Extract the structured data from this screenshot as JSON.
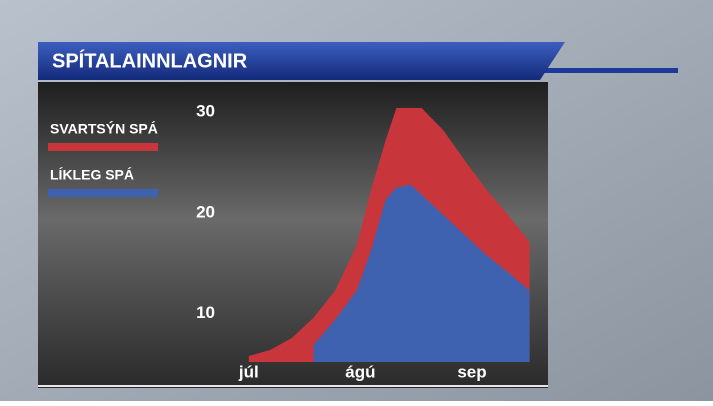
{
  "chart_data": {
    "type": "area",
    "title": "SPÍTALAINNLAGNIR",
    "x": [
      0,
      6,
      12,
      18,
      24,
      30,
      34,
      38,
      41,
      45,
      48,
      54,
      60,
      66,
      72,
      78
    ],
    "series": [
      {
        "name": "SVARTSÝN SPÁ",
        "color": "#c8363c",
        "values": [
          6.6,
          7.2,
          8.4,
          10.4,
          13.1,
          17.6,
          23.1,
          28.0,
          31.2,
          31.2,
          31.2,
          29.0,
          26.0,
          23.1,
          20.6,
          17.9
        ]
      },
      {
        "name": "LÍKLEG SPÁ",
        "color": "#3f62b0",
        "values": [
          null,
          null,
          null,
          7.7,
          10.2,
          13.1,
          17.1,
          22.1,
          23.3,
          23.6,
          22.6,
          20.6,
          18.6,
          16.6,
          14.9,
          13.1
        ]
      }
    ],
    "xlim": [
      -58,
      82
    ],
    "xticks": [
      {
        "value": 0,
        "label": "júl"
      },
      {
        "value": 31,
        "label": "ágú"
      },
      {
        "value": 62,
        "label": "sep"
      }
    ],
    "ylim": [
      6,
      32
    ],
    "yticks": [
      10,
      20,
      30
    ],
    "grid": false
  }
}
